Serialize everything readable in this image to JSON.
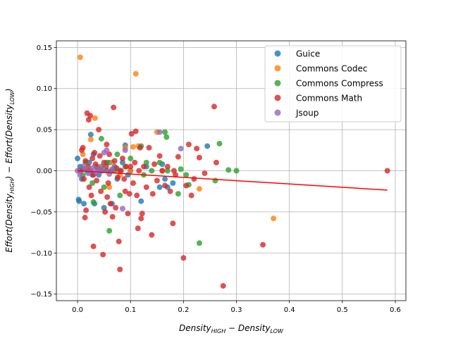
{
  "chart_data": {
    "type": "scatter",
    "title": "",
    "xlabel": {
      "main": "Density",
      "sub_high": "HIGH",
      "minus": " − ",
      "main2": "Density",
      "sub_low": "LOW"
    },
    "ylabel": {
      "pre": "Effort(Density",
      "sub_high": "HIGH",
      "mid": ") − Effort(Density",
      "sub_low": "LOW",
      "post": ")"
    },
    "xlim": [
      -0.04,
      0.62
    ],
    "ylim": [
      -0.158,
      0.158
    ],
    "xticks": [
      0.0,
      0.1,
      0.2,
      0.3,
      0.4,
      0.5,
      0.6
    ],
    "xtick_labels": [
      "0.0",
      "0.1",
      "0.2",
      "0.3",
      "0.4",
      "0.5",
      "0.6"
    ],
    "yticks": [
      0.15,
      0.1,
      0.05,
      0.0,
      -0.05,
      -0.1,
      -0.15
    ],
    "ytick_labels": [
      "0.15",
      "0.10",
      "0.05",
      "0.00",
      "−0.05",
      "−0.10",
      "−0.15"
    ],
    "grid": true,
    "legend_position": "top-right",
    "series": [
      {
        "name": "Guice",
        "color": "#1f77b4",
        "points": [
          [
            0.0,
            0.015
          ],
          [
            0.002,
            -0.035
          ],
          [
            0.003,
            -0.037
          ],
          [
            0.005,
            0.005
          ],
          [
            0.008,
            -0.01
          ],
          [
            0.01,
            0.002
          ],
          [
            0.012,
            -0.04
          ],
          [
            0.018,
            0.0
          ],
          [
            0.022,
            0.01
          ],
          [
            0.025,
            0.044
          ],
          [
            0.028,
            -0.005
          ],
          [
            0.03,
            0.02
          ],
          [
            0.032,
            -0.04
          ],
          [
            0.04,
            -0.005
          ],
          [
            0.045,
            0.005
          ],
          [
            0.05,
            -0.045
          ],
          [
            0.055,
            0.0
          ],
          [
            0.06,
            0.01
          ],
          [
            0.065,
            -0.04
          ],
          [
            0.07,
            0.005
          ],
          [
            0.075,
            -0.01
          ],
          [
            0.08,
            0.0
          ],
          [
            0.085,
            0.01
          ],
          [
            0.09,
            0.031
          ],
          [
            0.095,
            -0.005
          ],
          [
            0.1,
            0.0
          ],
          [
            0.12,
            -0.037
          ],
          [
            0.13,
            0.005
          ],
          [
            0.155,
            -0.02
          ],
          [
            0.16,
            0.008
          ],
          [
            0.165,
            -0.01
          ],
          [
            0.17,
            -0.02
          ],
          [
            0.18,
            -0.015
          ],
          [
            0.245,
            0.03
          ]
        ]
      },
      {
        "name": "Commons Codec",
        "color": "#ff7f0e",
        "points": [
          [
            0.005,
            0.138
          ],
          [
            0.01,
            0.02
          ],
          [
            0.025,
            0.038
          ],
          [
            0.033,
            0.064
          ],
          [
            0.04,
            0.005
          ],
          [
            0.06,
            -0.02
          ],
          [
            0.065,
            0.01
          ],
          [
            0.08,
            -0.005
          ],
          [
            0.09,
            0.028
          ],
          [
            0.1,
            0.0
          ],
          [
            0.105,
            0.029
          ],
          [
            0.11,
            0.118
          ],
          [
            0.115,
            0.03
          ],
          [
            0.15,
            0.047
          ],
          [
            0.16,
            0.0
          ],
          [
            0.23,
            -0.022
          ],
          [
            0.37,
            -0.058
          ]
        ]
      },
      {
        "name": "Commons Compress",
        "color": "#2ca02c",
        "points": [
          [
            0.01,
            -0.005
          ],
          [
            0.015,
            0.01
          ],
          [
            0.02,
            0.0
          ],
          [
            0.028,
            -0.015
          ],
          [
            0.03,
            -0.038
          ],
          [
            0.035,
            0.005
          ],
          [
            0.045,
            0.039
          ],
          [
            0.05,
            -0.02
          ],
          [
            0.055,
            0.01
          ],
          [
            0.06,
            -0.073
          ],
          [
            0.07,
            0.0
          ],
          [
            0.075,
            0.02
          ],
          [
            0.08,
            -0.03
          ],
          [
            0.09,
            0.005
          ],
          [
            0.1,
            0.015
          ],
          [
            0.12,
            0.03
          ],
          [
            0.125,
            -0.005
          ],
          [
            0.13,
            0.01
          ],
          [
            0.14,
            0.0
          ],
          [
            0.155,
            0.01
          ],
          [
            0.165,
            0.047
          ],
          [
            0.168,
            0.041
          ],
          [
            0.17,
            0.0
          ],
          [
            0.19,
            -0.028
          ],
          [
            0.195,
            0.002
          ],
          [
            0.205,
            -0.005
          ],
          [
            0.21,
            -0.017
          ],
          [
            0.23,
            -0.088
          ],
          [
            0.26,
            -0.012
          ],
          [
            0.268,
            0.033
          ],
          [
            0.285,
            0.001
          ],
          [
            0.3,
            0.0
          ]
        ]
      },
      {
        "name": "Commons Math",
        "color": "#d62728",
        "points": [
          [
            0.005,
            0.0
          ],
          [
            0.008,
            0.025
          ],
          [
            0.01,
            0.028
          ],
          [
            0.012,
            -0.01
          ],
          [
            0.014,
            -0.057
          ],
          [
            0.015,
            0.012
          ],
          [
            0.016,
            -0.048
          ],
          [
            0.018,
            0.07
          ],
          [
            0.02,
            0.005
          ],
          [
            0.021,
            0.062
          ],
          [
            0.022,
            -0.02
          ],
          [
            0.024,
            0.067
          ],
          [
            0.025,
            0.0
          ],
          [
            0.026,
            -0.03
          ],
          [
            0.028,
            0.015
          ],
          [
            0.03,
            -0.005
          ],
          [
            0.03,
            -0.092
          ],
          [
            0.032,
            0.022
          ],
          [
            0.034,
            0.008
          ],
          [
            0.036,
            -0.012
          ],
          [
            0.038,
            0.003
          ],
          [
            0.04,
            0.05
          ],
          [
            0.042,
            0.018
          ],
          [
            0.044,
            -0.025
          ],
          [
            0.046,
            0.0
          ],
          [
            0.048,
            -0.102
          ],
          [
            0.05,
            0.01
          ],
          [
            0.052,
            -0.05
          ],
          [
            0.054,
            0.005
          ],
          [
            0.055,
            0.032
          ],
          [
            0.056,
            -0.032
          ],
          [
            0.058,
            -0.015
          ],
          [
            0.06,
            0.02
          ],
          [
            0.062,
            -0.04
          ],
          [
            0.064,
            0.0
          ],
          [
            0.066,
            -0.056
          ],
          [
            0.068,
            0.077
          ],
          [
            0.07,
            0.012
          ],
          [
            0.072,
            -0.045
          ],
          [
            0.074,
            0.003
          ],
          [
            0.076,
            -0.008
          ],
          [
            0.078,
            -0.086
          ],
          [
            0.08,
            -0.12
          ],
          [
            0.082,
            0.0
          ],
          [
            0.085,
            0.015
          ],
          [
            0.088,
            -0.01
          ],
          [
            0.09,
            -0.025
          ],
          [
            0.092,
            0.005
          ],
          [
            0.095,
            -0.052
          ],
          [
            0.098,
            -0.028
          ],
          [
            0.1,
            0.005
          ],
          [
            0.102,
            0.045
          ],
          [
            0.105,
            -0.015
          ],
          [
            0.108,
            0.01
          ],
          [
            0.11,
            0.048
          ],
          [
            0.112,
            -0.03
          ],
          [
            0.114,
            -0.07
          ],
          [
            0.116,
            0.0
          ],
          [
            0.118,
            0.028
          ],
          [
            0.12,
            -0.058
          ],
          [
            0.122,
            -0.052
          ],
          [
            0.125,
            0.005
          ],
          [
            0.13,
            -0.02
          ],
          [
            0.135,
            0.028
          ],
          [
            0.14,
            -0.078
          ],
          [
            0.142,
            -0.028
          ],
          [
            0.145,
            0.008
          ],
          [
            0.15,
            -0.012
          ],
          [
            0.155,
            0.018
          ],
          [
            0.16,
            0.0
          ],
          [
            0.165,
            -0.018
          ],
          [
            0.17,
            0.005
          ],
          [
            0.175,
            -0.025
          ],
          [
            0.18,
            -0.064
          ],
          [
            0.182,
            0.0
          ],
          [
            0.185,
            -0.005
          ],
          [
            0.19,
            0.017
          ],
          [
            0.2,
            -0.106
          ],
          [
            0.205,
            -0.018
          ],
          [
            0.21,
            0.032
          ],
          [
            0.215,
            -0.03
          ],
          [
            0.22,
            -0.01
          ],
          [
            0.225,
            0.027
          ],
          [
            0.23,
            0.016
          ],
          [
            0.24,
            -0.003
          ],
          [
            0.258,
            0.078
          ],
          [
            0.262,
            0.01
          ],
          [
            0.275,
            -0.14
          ],
          [
            0.35,
            -0.09
          ],
          [
            0.585,
            0.0
          ]
        ]
      },
      {
        "name": "Jsoup",
        "color": "#9467bd",
        "points": [
          [
            0.0,
            0.0
          ],
          [
            0.005,
            -0.005
          ],
          [
            0.01,
            0.005
          ],
          [
            0.015,
            0.002
          ],
          [
            0.02,
            -0.003
          ],
          [
            0.025,
            0.0
          ],
          [
            0.03,
            0.004
          ],
          [
            0.035,
            -0.002
          ],
          [
            0.04,
            0.003
          ],
          [
            0.045,
            0.0
          ],
          [
            0.05,
            0.022
          ],
          [
            0.055,
            0.025
          ],
          [
            0.06,
            -0.004
          ],
          [
            0.065,
            0.002
          ],
          [
            0.085,
            -0.046
          ],
          [
            0.09,
            0.025
          ],
          [
            0.155,
            0.047
          ],
          [
            0.195,
            0.027
          ]
        ]
      }
    ],
    "trend_line": {
      "color": "#ff0000",
      "x": [
        0.0,
        0.585
      ],
      "y": [
        0.0,
        -0.0235
      ]
    }
  }
}
